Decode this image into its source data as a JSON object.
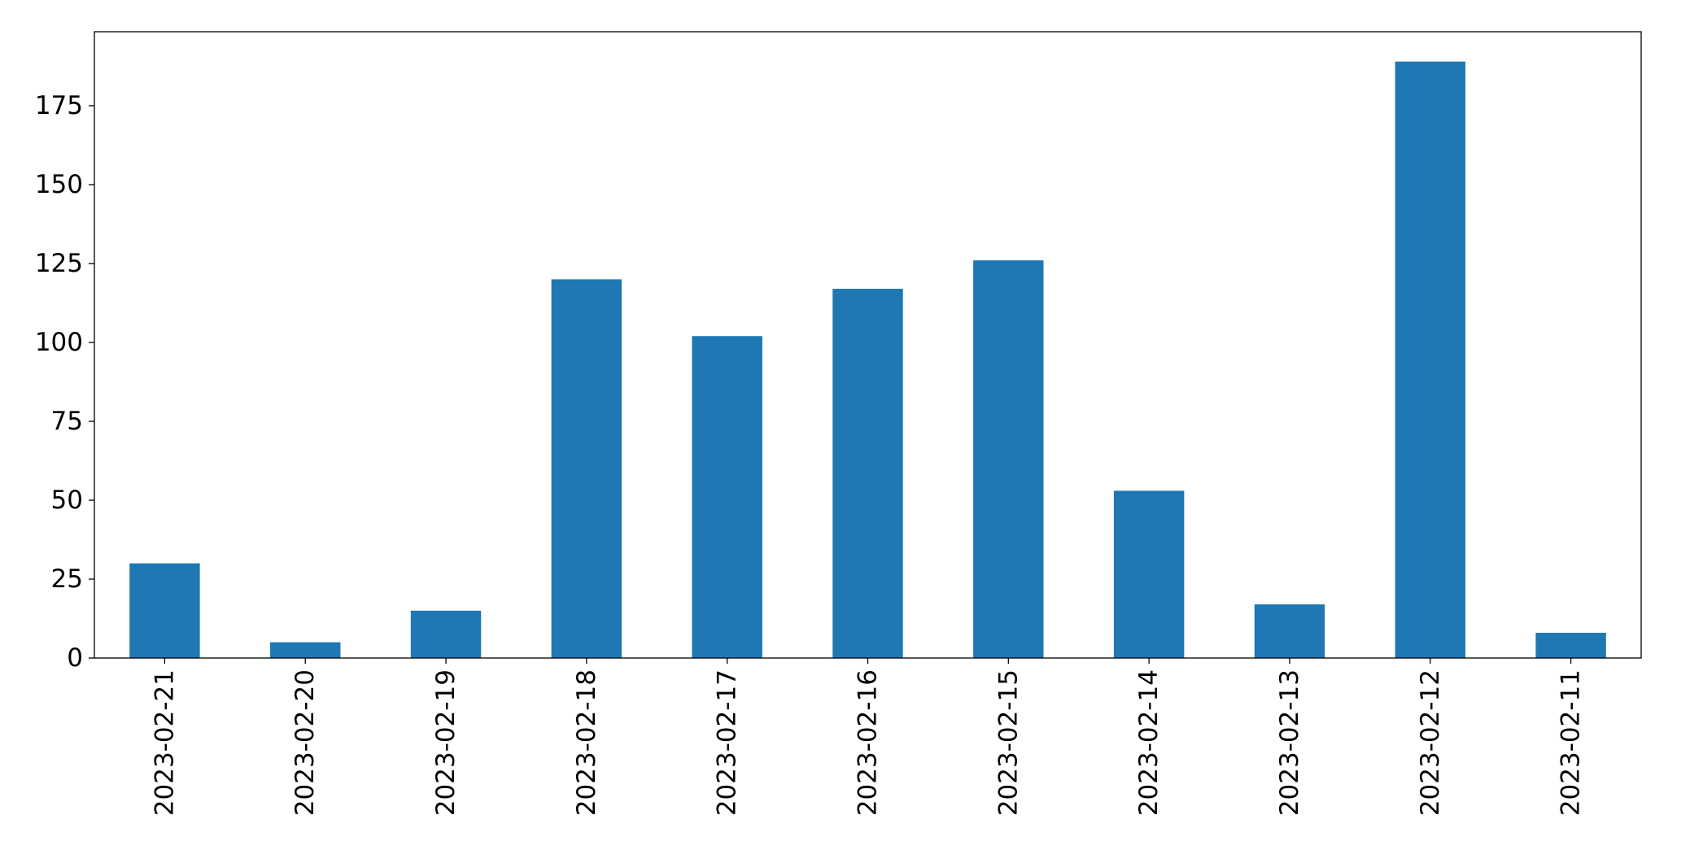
{
  "chart_data": {
    "type": "bar",
    "title": "",
    "xlabel": "",
    "ylabel": "",
    "categories": [
      "2023-02-21",
      "2023-02-20",
      "2023-02-19",
      "2023-02-18",
      "2023-02-17",
      "2023-02-16",
      "2023-02-15",
      "2023-02-14",
      "2023-02-13",
      "2023-02-12",
      "2023-02-11"
    ],
    "values": [
      30,
      5,
      15,
      120,
      102,
      117,
      126,
      53,
      17,
      189,
      8
    ],
    "ylim": [
      0,
      198.45
    ],
    "yticks": [
      0,
      25,
      50,
      75,
      100,
      125,
      150,
      175
    ],
    "grid": false,
    "legend": "none",
    "bar_color": "#1f77b4",
    "x_tick_rotation": 90
  }
}
